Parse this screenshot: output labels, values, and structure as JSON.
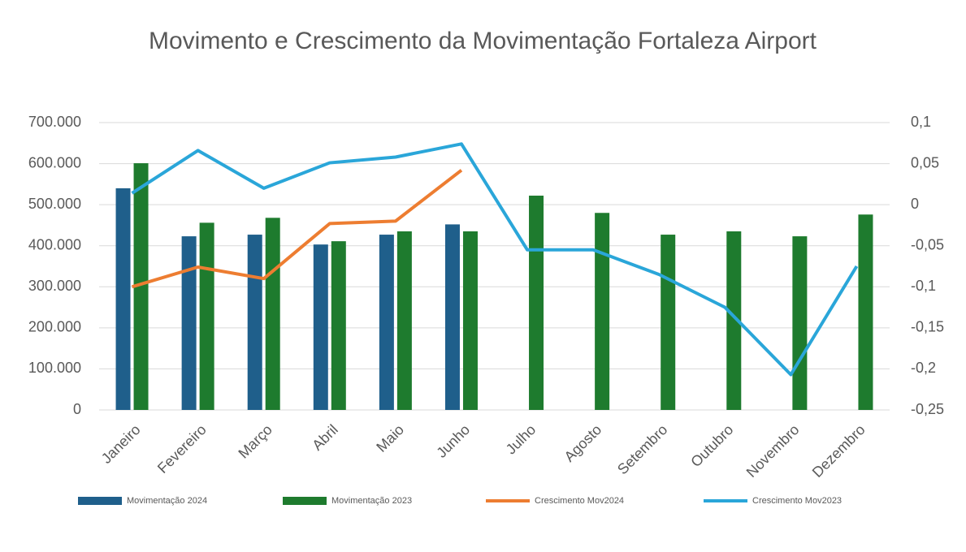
{
  "chart_data": {
    "type": "bar",
    "title": "Movimento e Crescimento da Movimentação Fortaleza Airport",
    "categories": [
      "Janeiro",
      "Fevereiro",
      "Março",
      "Abril",
      "Maio",
      "Junho",
      "Julho",
      "Agosto",
      "Setembro",
      "Outubro",
      "Novembro",
      "Dezembro"
    ],
    "series": [
      {
        "name": "Movimentação 2024",
        "type": "bar",
        "color": "#1f5f8b",
        "values": [
          540000,
          423000,
          427000,
          403000,
          427000,
          452000,
          null,
          null,
          null,
          null,
          null,
          null
        ]
      },
      {
        "name": "Movimentação 2023",
        "type": "bar",
        "color": "#1e7b2e",
        "values": [
          601000,
          456000,
          468000,
          411000,
          435000,
          435000,
          522000,
          480000,
          427000,
          435000,
          423000,
          476000
        ]
      },
      {
        "name": "Crescimento Mov2024",
        "type": "line",
        "axis": "y2",
        "color": "#ed7d31",
        "values": [
          -0.1,
          -0.076,
          -0.09,
          -0.023,
          -0.02,
          0.042,
          null,
          null,
          null,
          null,
          null,
          null
        ]
      },
      {
        "name": "Crescimento Mov2023",
        "type": "line",
        "axis": "y2",
        "color": "#2aa6d9",
        "values": [
          0.014,
          0.066,
          0.02,
          0.051,
          0.058,
          0.074,
          -0.055,
          -0.055,
          -0.085,
          -0.125,
          -0.207,
          -0.075
        ]
      }
    ],
    "ylim": [
      0,
      700000
    ],
    "yticks": [
      0,
      {
        "value": 100000,
        "label": "100.000"
      },
      {
        "value": 200000,
        "label": "200.000"
      },
      {
        "value": 300000,
        "label": "300.000"
      },
      {
        "value": 400000,
        "label": "400.000"
      },
      {
        "value": 500000,
        "label": "500.000"
      },
      {
        "value": 600000,
        "label": "600.000"
      },
      {
        "value": 700000,
        "label": "700.000"
      }
    ],
    "y2lim": [
      -0.25,
      0.1
    ],
    "y2ticks": [
      {
        "value": -0.25,
        "label": "-0,25"
      },
      {
        "value": -0.2,
        "label": "-0,2"
      },
      {
        "value": -0.15,
        "label": "-0,15"
      },
      {
        "value": -0.1,
        "label": "-0,1"
      },
      {
        "value": -0.05,
        "label": "-0,05"
      },
      0,
      {
        "value": 0.05,
        "label": "0,05"
      },
      {
        "value": 0.1,
        "label": "0,1"
      }
    ],
    "grid": true
  }
}
